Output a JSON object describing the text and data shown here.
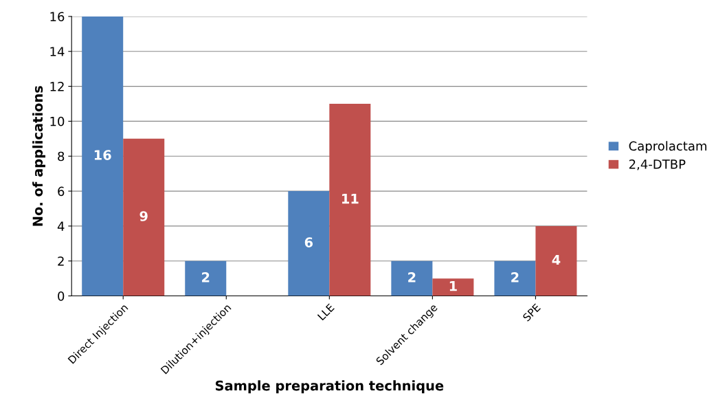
{
  "chart_data": {
    "type": "bar",
    "xlabel": "Sample preparation technique",
    "ylabel": "No. of applications",
    "categories": [
      "Direct Injection",
      "Dilution+injection",
      "LLE",
      "Solvent change",
      "SPE"
    ],
    "series": [
      {
        "name": "Caprolactam",
        "color": "#4f81bd",
        "values": [
          16,
          2,
          6,
          2,
          2
        ],
        "value_labels": [
          "16",
          "2",
          "6",
          "2",
          "2"
        ]
      },
      {
        "name": "2,4-DTBP",
        "color": "#c0504d",
        "values": [
          9,
          0,
          11,
          1,
          4
        ],
        "value_labels": [
          "9",
          null,
          "11",
          "1",
          "4"
        ]
      }
    ],
    "ylim": [
      0,
      16
    ],
    "yticks": [
      0,
      2,
      4,
      6,
      8,
      10,
      12,
      14,
      16
    ],
    "grid": "y",
    "legend": "right"
  }
}
